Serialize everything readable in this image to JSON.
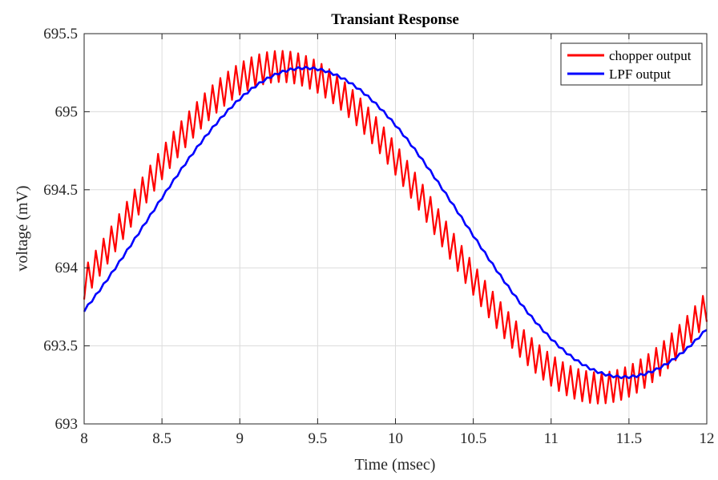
{
  "chart_data": {
    "type": "line",
    "title": "Transiant Response",
    "xlabel": "Time (msec)",
    "ylabel": "voltage (mV)",
    "xlim": [
      8,
      12
    ],
    "ylim": [
      693,
      695.5
    ],
    "xticks": [
      8,
      8.5,
      9,
      9.5,
      10,
      10.5,
      11,
      11.5,
      12
    ],
    "xtick_labels": [
      "8",
      "8.5",
      "9",
      "9.5",
      "10",
      "10.5",
      "11",
      "11.5",
      "12"
    ],
    "yticks": [
      693,
      693.5,
      694,
      694.5,
      695,
      695.5
    ],
    "ytick_labels": [
      "693",
      "693.5",
      "694",
      "694.5",
      "695",
      "695.5"
    ],
    "grid": true,
    "legend": {
      "placement": "top-right"
    },
    "series": [
      {
        "name": "chopper output",
        "color": "#ff0000",
        "center_sine": {
          "offset": 694.26,
          "amplitude": 1.03,
          "period_msec": 4.1,
          "peak_at_msec": 9.26
        },
        "ripple_peak_to_peak_mV": 0.2,
        "ripple_period_msec": 0.05
      },
      {
        "name": "LPF output",
        "color": "#0000ff",
        "center_sine": {
          "offset": 694.29,
          "amplitude": 0.99,
          "period_msec": 4.1,
          "peak_at_msec": 9.42
        },
        "ripple_peak_to_peak_mV": 0.015,
        "ripple_period_msec": 0.05
      }
    ]
  }
}
